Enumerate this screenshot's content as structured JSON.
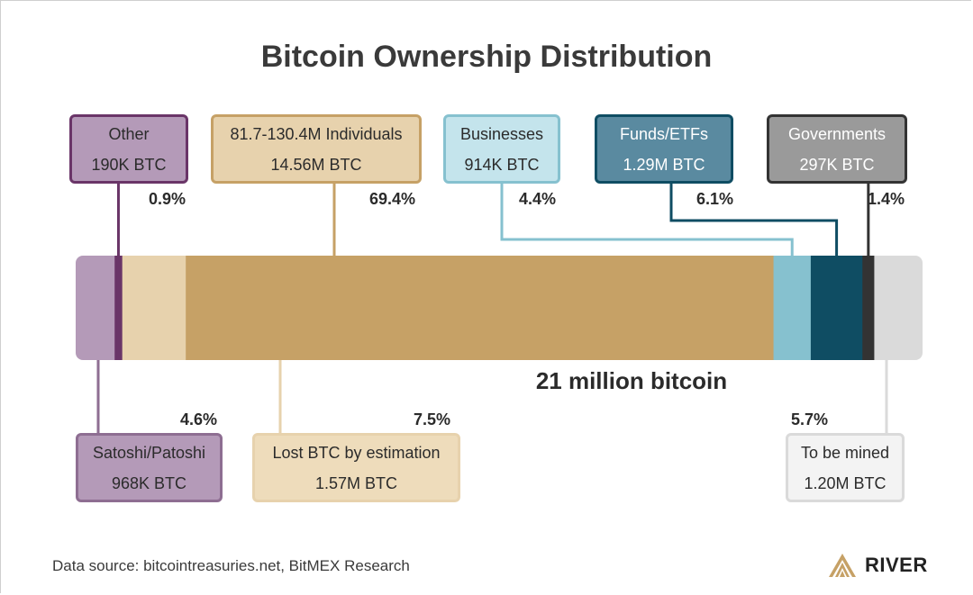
{
  "title": "Bitcoin Ownership Distribution",
  "center_label": "21 million bitcoin",
  "source": "Data source: bitcointreasuries.net, BitMEX Research",
  "brand": {
    "name": "RIVER",
    "logo_icon": "river-mountain-logo-icon"
  },
  "colors": {
    "satoshi": "#b49ab8",
    "other": "#6a3568",
    "lost": "#e7d2ad",
    "individuals": "#c6a166",
    "businesses": "#86c1cf",
    "funds": "#0f4d63",
    "governments": "#333333",
    "mined": "#dadada",
    "box_satoshi_bg": "#b49ab8",
    "box_satoshi_border": "#8e6e92",
    "box_other_bg": "#b49ab8",
    "box_other_border": "#6a3568",
    "box_individuals_bg": "#e7d2ad",
    "box_individuals_border": "#c6a166",
    "box_lost_bg": "#eedcbb",
    "box_lost_border": "#e7d2ad",
    "box_businesses_bg": "#c4e4ec",
    "box_businesses_border": "#86c1cf",
    "box_funds_bg": "#5a8aa0",
    "box_funds_border": "#0f4d63",
    "box_governments_bg": "#9a9a9a",
    "box_governments_border": "#333333",
    "box_mined_bg": "#f3f3f3",
    "box_mined_border": "#dadada"
  },
  "chart_data": {
    "type": "bar",
    "orientation": "horizontal-stacked-100",
    "total_label": "21 million bitcoin",
    "segments": [
      {
        "key": "satoshi",
        "name": "Satoshi/Patoshi",
        "amount": "968K BTC",
        "percent_label": "4.6%",
        "value": 4.6
      },
      {
        "key": "other",
        "name": "Other",
        "amount": "190K BTC",
        "percent_label": "0.9%",
        "value": 0.9
      },
      {
        "key": "lost",
        "name": "Lost BTC by estimation",
        "amount": "1.57M BTC",
        "percent_label": "7.5%",
        "value": 7.5
      },
      {
        "key": "individuals",
        "name": "81.7-130.4M Individuals",
        "amount": "14.56M BTC",
        "percent_label": "69.4%",
        "value": 69.4
      },
      {
        "key": "businesses",
        "name": "Businesses",
        "amount": "914K BTC",
        "percent_label": "4.4%",
        "value": 4.4
      },
      {
        "key": "funds",
        "name": "Funds/ETFs",
        "amount": "1.29M BTC",
        "percent_label": "6.1%",
        "value": 6.1
      },
      {
        "key": "governments",
        "name": "Governments",
        "amount": "297K BTC",
        "percent_label": "1.4%",
        "value": 1.4
      },
      {
        "key": "mined",
        "name": "To be mined",
        "amount": "1.20M BTC",
        "percent_label": "5.7%",
        "value": 5.7
      }
    ]
  }
}
